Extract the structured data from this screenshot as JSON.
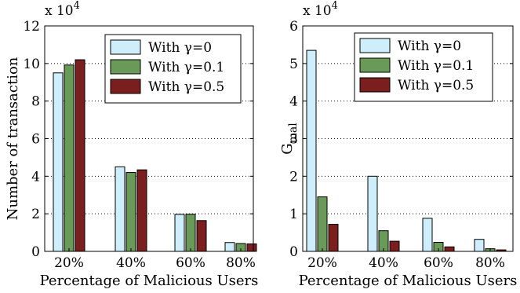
{
  "chart_data": [
    {
      "type": "bar",
      "categories": [
        "20%",
        "40%",
        "60%",
        "80%"
      ],
      "series": [
        {
          "name": "With γ=0",
          "color": "#cdeefa",
          "values": [
            95000,
            45000,
            19700,
            4700
          ]
        },
        {
          "name": "With γ=0.1",
          "color": "#6a9a58",
          "values": [
            99200,
            42000,
            19800,
            4200
          ]
        },
        {
          "name": "With γ=0.5",
          "color": "#7a1e1e",
          "values": [
            102000,
            43400,
            16400,
            4000
          ]
        }
      ],
      "xlabel": "Percentage of Malicious Users",
      "ylabel": "Number of transaction",
      "ylim": [
        0,
        120000
      ],
      "yticks": [
        0,
        2,
        4,
        6,
        8,
        10,
        12
      ],
      "multiplier_base": "x 10",
      "multiplier_exp": "4",
      "grid": "dotted-horizontal",
      "legend": "top-right"
    },
    {
      "type": "bar",
      "categories": [
        "20%",
        "40%",
        "60%",
        "80%"
      ],
      "series": [
        {
          "name": "With γ=0",
          "color": "#cdeefa",
          "values": [
            53500,
            20000,
            8800,
            3200
          ]
        },
        {
          "name": "With γ=0.1",
          "color": "#6a9a58",
          "values": [
            14500,
            5500,
            2400,
            700
          ]
        },
        {
          "name": "With γ=0.5",
          "color": "#7a1e1e",
          "values": [
            7200,
            2700,
            1200,
            400
          ]
        }
      ],
      "xlabel": "Percentage of Malicious Users",
      "ylabel_main": "G",
      "ylabel_sub": "mal",
      "ylim": [
        0,
        60000
      ],
      "yticks": [
        0,
        1,
        2,
        3,
        4,
        5,
        6
      ],
      "multiplier_base": "x 10",
      "multiplier_exp": "4",
      "grid": "dotted-horizontal",
      "legend": "top-right"
    }
  ]
}
